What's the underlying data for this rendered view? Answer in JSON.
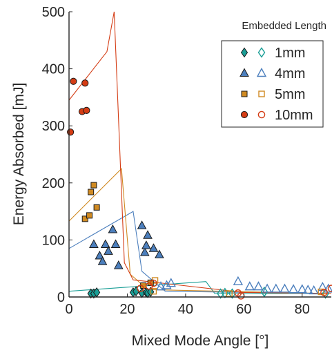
{
  "chart_data": {
    "type": "scatter",
    "title": "",
    "xlabel": "Mixed Mode Angle [°]",
    "ylabel": "Energy Absorbed [mJ]",
    "xlim": [
      0,
      90
    ],
    "ylim": [
      0,
      500
    ],
    "xticks": [
      "0",
      "20",
      "40",
      "60",
      "80"
    ],
    "yticks": [
      "0",
      "100",
      "200",
      "300",
      "400",
      "500"
    ],
    "grid": false,
    "legend": {
      "title": "Embedded Length",
      "placement": "top-right",
      "entries": [
        "1mm",
        "4mm",
        "5mm",
        "10mm"
      ]
    },
    "series": [
      {
        "name": "1mm",
        "color": "#1a9e96",
        "marker": "diamond",
        "filled": [
          [
            7.5,
            6
          ],
          [
            8.5,
            6
          ],
          [
            9.5,
            8
          ],
          [
            22,
            8
          ],
          [
            23,
            10
          ],
          [
            25,
            7
          ],
          [
            26.5,
            8
          ],
          [
            27,
            7
          ],
          [
            28,
            9
          ]
        ],
        "open": [
          [
            52,
            6
          ],
          [
            53.5,
            7
          ],
          [
            56,
            6
          ],
          [
            67,
            9
          ],
          [
            88,
            6
          ]
        ],
        "fit": [
          [
            0,
            10
          ],
          [
            47,
            27
          ],
          [
            50,
            6
          ],
          [
            90,
            6
          ]
        ]
      },
      {
        "name": "4mm",
        "color": "#4c7fbd",
        "marker": "triangle",
        "filled": [
          [
            8.5,
            92
          ],
          [
            10.5,
            72
          ],
          [
            11.5,
            62
          ],
          [
            12.5,
            92
          ],
          [
            13.5,
            80
          ],
          [
            15,
            118
          ],
          [
            16,
            92
          ],
          [
            17,
            55
          ],
          [
            25,
            125
          ],
          [
            26,
            78
          ],
          [
            26.5,
            90
          ],
          [
            27,
            108
          ],
          [
            29,
            85
          ],
          [
            31,
            74
          ]
        ],
        "open": [
          [
            31.5,
            18
          ],
          [
            33.5,
            20
          ],
          [
            35,
            24
          ],
          [
            58,
            27
          ],
          [
            62,
            18
          ],
          [
            65,
            18
          ],
          [
            68,
            14
          ],
          [
            71,
            14
          ],
          [
            74,
            14
          ],
          [
            77,
            13
          ],
          [
            80,
            13
          ],
          [
            82,
            12
          ],
          [
            84,
            11
          ],
          [
            87,
            17
          ],
          [
            89,
            14
          ]
        ],
        "fit": [
          [
            0,
            85
          ],
          [
            22,
            150
          ],
          [
            25,
            45
          ],
          [
            33,
            10
          ],
          [
            90,
            6
          ]
        ]
      },
      {
        "name": "5mm",
        "color": "#d08a22",
        "marker": "square",
        "filled": [
          [
            5.5,
            137
          ],
          [
            7,
            143
          ],
          [
            7.5,
            184
          ],
          [
            8.5,
            196
          ],
          [
            9.5,
            157
          ],
          [
            25.5,
            20
          ],
          [
            28,
            25
          ]
        ],
        "open": [
          [
            29,
            10
          ],
          [
            29.5,
            29
          ],
          [
            55,
            6
          ],
          [
            86.5,
            9
          ]
        ],
        "fit": [
          [
            0,
            133
          ],
          [
            18,
            225
          ],
          [
            21,
            40
          ],
          [
            27,
            13
          ],
          [
            90,
            6
          ]
        ]
      },
      {
        "name": "10mm",
        "color": "#d43c14",
        "marker": "circle",
        "filled": [
          [
            0.5,
            289
          ],
          [
            1.5,
            378
          ],
          [
            4.5,
            325
          ],
          [
            5.5,
            375
          ],
          [
            6,
            327
          ]
        ],
        "open": [
          [
            24.5,
            15
          ],
          [
            27.5,
            19
          ],
          [
            29,
            24
          ],
          [
            58,
            7
          ],
          [
            59,
            2
          ],
          [
            87.5,
            8
          ],
          [
            90,
            15
          ]
        ],
        "fit": [
          [
            0,
            345
          ],
          [
            13,
            430
          ],
          [
            15.5,
            505
          ],
          [
            19,
            60
          ],
          [
            22,
            30
          ],
          [
            60,
            8
          ],
          [
            90,
            6
          ]
        ]
      }
    ]
  }
}
